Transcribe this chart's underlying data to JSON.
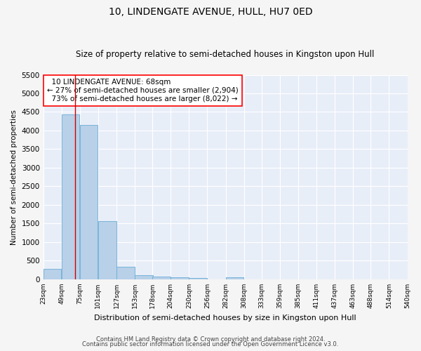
{
  "title": "10, LINDENGATE AVENUE, HULL, HU7 0ED",
  "subtitle": "Size of property relative to semi-detached houses in Kingston upon Hull",
  "xlabel": "Distribution of semi-detached houses by size in Kingston upon Hull",
  "ylabel": "Number of semi-detached properties",
  "footer_line1": "Contains HM Land Registry data © Crown copyright and database right 2024.",
  "footer_line2": "Contains public sector information licensed under the Open Government Licence v3.0.",
  "property_label": "10 LINDENGATE AVENUE: 68sqm",
  "smaller_pct": "27%",
  "smaller_count": "2,904",
  "larger_pct": "73%",
  "larger_count": "8,022",
  "bin_labels": [
    "23sqm",
    "49sqm",
    "75sqm",
    "101sqm",
    "127sqm",
    "153sqm",
    "178sqm",
    "204sqm",
    "230sqm",
    "256sqm",
    "282sqm",
    "308sqm",
    "333sqm",
    "359sqm",
    "385sqm",
    "411sqm",
    "437sqm",
    "463sqm",
    "488sqm",
    "514sqm",
    "540sqm"
  ],
  "bin_starts": [
    23,
    49,
    75,
    101,
    127,
    153,
    178,
    204,
    230,
    256,
    282,
    308,
    333,
    359,
    385,
    411,
    437,
    463,
    488,
    514
  ],
  "bar_values": [
    290,
    4430,
    4150,
    1560,
    330,
    120,
    70,
    55,
    40,
    0,
    55,
    0,
    0,
    0,
    0,
    0,
    0,
    0,
    0,
    0
  ],
  "bar_color": "#b8d0e8",
  "bar_edge_color": "#6aaed6",
  "vline_color": "#cc0000",
  "vline_x": 68,
  "ylim": [
    0,
    5500
  ],
  "yticks": [
    0,
    500,
    1000,
    1500,
    2000,
    2500,
    3000,
    3500,
    4000,
    4500,
    5000,
    5500
  ],
  "bg_color": "#e8eef8",
  "grid_color": "#ffffff",
  "fig_bg_color": "#f5f5f5",
  "title_fontsize": 10,
  "subtitle_fontsize": 8.5,
  "annotation_fontsize": 7.5
}
